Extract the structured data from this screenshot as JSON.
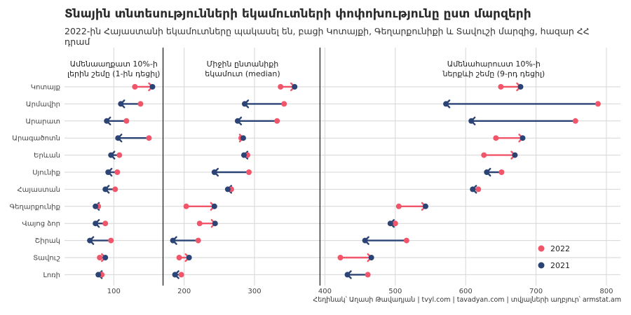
{
  "title": "Տնային տնտեսությունների եկամուտների փոփոխությունը ըստ մարզերի",
  "subtitle": "2022-ին Հայաստանի եկամուտները պակասել են, բացի Կոտայքի, Գեղարքունիքի և Տավուշի մարզից, հազար ՀՀ դրամ",
  "caption": "Հեղինակ՝ Աղասի Թավադյան   |   tvyl.com   |   tavadyan.com   |   տվյալների աղբյուր՝ armstat.am",
  "colors": {
    "y2022": "#f0556a",
    "y2021": "#2b4475"
  },
  "chart_data": {
    "type": "dumbbell",
    "regions": [
      "Կոտայք",
      "Արմավիր",
      "Արարատ",
      "Արագածոտն",
      "Երևան",
      "Սյունիք",
      "Հայաստան",
      "Գեղարքունիք",
      "Վայոց ձոր",
      "Շիրակ",
      "Տավուշ",
      "Լոռի"
    ],
    "xlim": [
      30,
      820
    ],
    "xticks": [
      100,
      200,
      300,
      400,
      500,
      600,
      700,
      800
    ],
    "panels": [
      {
        "title": [
          "Ամենաաղքատ 10%-ի",
          "լերին շեմը (1-ին դեցիլ)"
        ],
        "y2022": [
          130,
          138,
          118,
          150,
          108,
          105,
          102,
          78,
          88,
          96,
          80,
          83
        ],
        "y2021": [
          155,
          110,
          90,
          106,
          96,
          92,
          88,
          74,
          74,
          66,
          88,
          78
        ]
      },
      {
        "title": [
          "Միջին ընտանիքի",
          "եկամուտ (median)"
        ],
        "y2022": [
          337,
          342,
          332,
          281,
          290,
          292,
          267,
          203,
          222,
          220,
          193,
          196
        ],
        "y2021": [
          357,
          286,
          276,
          284,
          285,
          243,
          262,
          243,
          244,
          184,
          207,
          187
        ]
      },
      {
        "title": [
          "Ամենահարուստ 10%-ի",
          "ներքևի շեմը (9-րդ դեցիլ)"
        ],
        "y2022": [
          650,
          788,
          756,
          643,
          626,
          651,
          618,
          505,
          500,
          516,
          422,
          461
        ],
        "y2021": [
          678,
          572,
          608,
          681,
          670,
          630,
          610,
          543,
          493,
          457,
          466,
          432
        ]
      }
    ],
    "legend": [
      {
        "key": "y2022",
        "label": "2022"
      },
      {
        "key": "y2021",
        "label": "2021"
      }
    ],
    "legend_position": "bottom-right"
  }
}
